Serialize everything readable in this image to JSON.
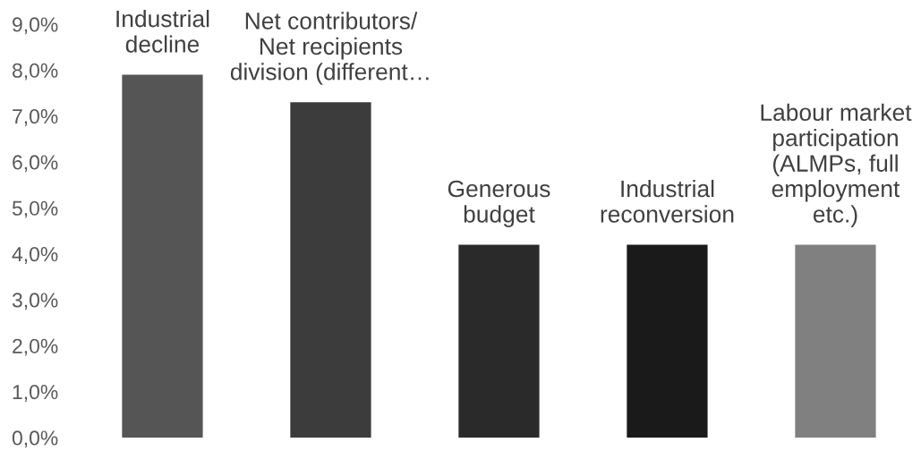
{
  "chart_data": {
    "type": "bar",
    "categories": [
      "Industrial\ndecline",
      "Net contributors/\nNet recipients\ndivision (different…",
      "Generous\nbudget",
      "Industrial\nreconversion",
      "Labour market\nparticipation\n(ALMPs, full\nemployment\netc.)"
    ],
    "values": [
      7.9,
      7.3,
      4.2,
      4.2,
      4.2
    ],
    "colors": [
      "#555555",
      "#3c3c3c",
      "#2a2a2a",
      "#1a1a1a",
      "#808080"
    ],
    "ylim": [
      0,
      9
    ],
    "yticks": [
      {
        "value": 0,
        "label": "0,0%"
      },
      {
        "value": 1,
        "label": "1,0%"
      },
      {
        "value": 2,
        "label": "2,0%"
      },
      {
        "value": 3,
        "label": "3,0%"
      },
      {
        "value": 4,
        "label": "4,0%"
      },
      {
        "value": 5,
        "label": "5,0%"
      },
      {
        "value": 6,
        "label": "6,0%"
      },
      {
        "value": 7,
        "label": "7,0%"
      },
      {
        "value": 8,
        "label": "8,0%"
      },
      {
        "value": 9,
        "label": "9,0%"
      }
    ],
    "tick_labels": "y",
    "grid": false,
    "legend": false
  }
}
